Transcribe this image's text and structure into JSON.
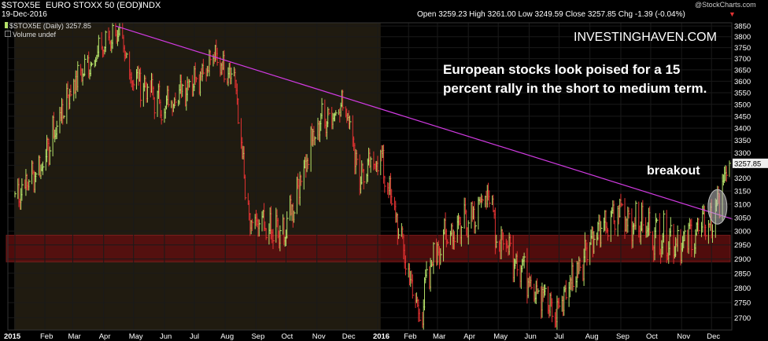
{
  "header": {
    "symbol": "$STOX5E",
    "name": "EURO STOXX 50 (EOD)",
    "exchange": "INDX",
    "date": "19-Dec-2016",
    "quote": "Open 3259.23  High 3261.00  Low 3249.59  Close 3257.85  Chg -1.39 (-0.04%)",
    "quote_arrow": "▼",
    "credit": "@StockCharts.com"
  },
  "legend": {
    "line1": "$STOX5E (Daily) 3257.85",
    "line2": "Volume undef"
  },
  "annotations": {
    "watermark": "INVESTINGHAVEN.COM",
    "headline_1": "European stocks look poised for a 15",
    "headline_2": "percent rally in the short to medium term.",
    "breakout": "breakout"
  },
  "colors": {
    "up": "#b5e26a",
    "down": "#e13232",
    "trendline": "#d23be3",
    "support_zone": "#5e0f0f",
    "year_2015_shade": "#201b10",
    "breakout_ellipse": "#bdbdbd",
    "price_box": "#eeeeee"
  },
  "chart_data": {
    "type": "candlestick",
    "title": "EURO STOXX 50 (EOD)",
    "x_range": [
      "2015-01-02",
      "2016-12-19"
    ],
    "ylim": [
      2660,
      3865
    ],
    "y_scale": "log",
    "y_ticks": [
      2700,
      2750,
      2800,
      2850,
      2900,
      2950,
      3000,
      3050,
      3100,
      3150,
      3200,
      3250,
      3300,
      3350,
      3400,
      3450,
      3500,
      3550,
      3600,
      3650,
      3700,
      3750,
      3800,
      3850
    ],
    "x_tick_labels": [
      "2015",
      "Feb",
      "Mar",
      "Apr",
      "May",
      "Jun",
      "Jul",
      "Aug",
      "Sep",
      "Oct",
      "Nov",
      "Dec",
      "2016",
      "Feb",
      "Mar",
      "Apr",
      "May",
      "Jun",
      "Jul",
      "Aug",
      "Sep",
      "Oct",
      "Nov",
      "Dec"
    ],
    "last_price_label": "3257.85",
    "monthly_closes": [
      {
        "date": "2015-01-02",
        "close": 3140
      },
      {
        "date": "2015-02-01",
        "close": 3280
      },
      {
        "date": "2015-03-01",
        "close": 3600
      },
      {
        "date": "2015-04-13",
        "close": 3836
      },
      {
        "date": "2015-05-01",
        "close": 3620
      },
      {
        "date": "2015-06-01",
        "close": 3480
      },
      {
        "date": "2015-07-20",
        "close": 3690
      },
      {
        "date": "2015-08-10",
        "close": 3620
      },
      {
        "date": "2015-08-24",
        "close": 3030
      },
      {
        "date": "2015-09-29",
        "close": 2990
      },
      {
        "date": "2015-11-01",
        "close": 3420
      },
      {
        "date": "2015-12-01",
        "close": 3500
      },
      {
        "date": "2015-12-14",
        "close": 3190
      },
      {
        "date": "2016-01-04",
        "close": 3270
      },
      {
        "date": "2016-02-11",
        "close": 2690
      },
      {
        "date": "2016-03-01",
        "close": 2950
      },
      {
        "date": "2016-04-20",
        "close": 3130
      },
      {
        "date": "2016-05-01",
        "close": 2980
      },
      {
        "date": "2016-06-27",
        "close": 2700
      },
      {
        "date": "2016-08-01",
        "close": 2950
      },
      {
        "date": "2016-09-01",
        "close": 3060
      },
      {
        "date": "2016-10-01",
        "close": 3000
      },
      {
        "date": "2016-11-04",
        "close": 2960
      },
      {
        "date": "2016-12-01",
        "close": 3030
      },
      {
        "date": "2016-12-19",
        "close": 3257.85
      }
    ],
    "trendline": [
      {
        "date": "2015-04-13",
        "value": 3850
      },
      {
        "date": "2016-12-19",
        "value": 3050
      }
    ],
    "support_zone": [
      2890,
      2985
    ],
    "breakout_marker": {
      "date": "2016-12-07",
      "value": 3090
    }
  }
}
